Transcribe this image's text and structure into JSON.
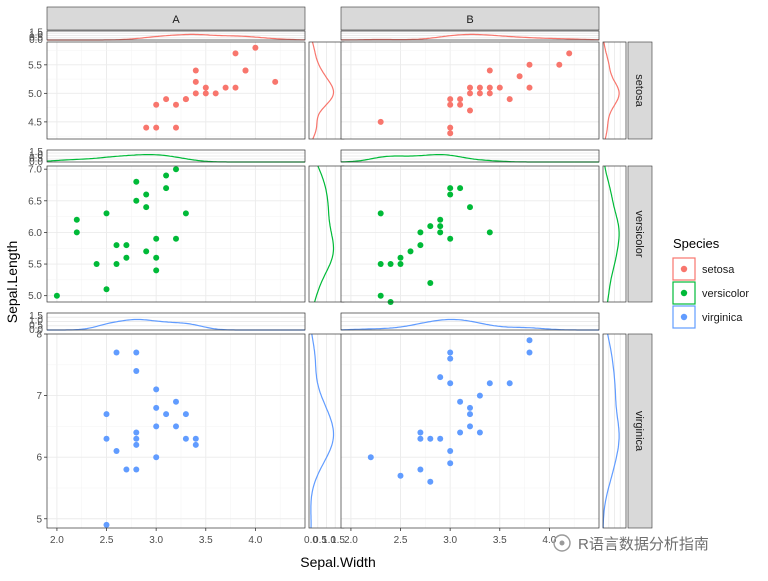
{
  "chart_data": {
    "type": "scatter",
    "title": "",
    "xlabel": "Sepal.Width",
    "ylabel": "Sepal.Length",
    "facet_columns": [
      "A",
      "B"
    ],
    "facet_rows": [
      "setosa",
      "versicolor",
      "virginica"
    ],
    "xlim": [
      1.9,
      4.5
    ],
    "x_ticks": [
      "2.0",
      "2.5",
      "3.0",
      "3.5",
      "4.0"
    ],
    "marginal_ticks": [
      "0.0",
      "0.5",
      "1.0",
      "1.5"
    ],
    "legend": {
      "title": "Species",
      "position": "right",
      "entries": [
        {
          "label": "setosa",
          "color": "#F8766D"
        },
        {
          "label": "versicolor",
          "color": "#00BA38"
        },
        {
          "label": "virginica",
          "color": "#619CFF"
        }
      ]
    },
    "rows": [
      {
        "species": "setosa",
        "color": "#F8766D",
        "ylim": [
          4.2,
          5.9
        ],
        "y_ticks": [
          "4.5",
          "5.0",
          "5.5"
        ],
        "panels": {
          "A": {
            "x": [
              2.9,
              3.0,
              3.0,
              3.2,
              3.3,
              3.3,
              3.2,
              3.1,
              3.4,
              3.4,
              3.4,
              3.5,
              3.5,
              3.6,
              3.7,
              3.8,
              3.8,
              3.9,
              3.9,
              4.0,
              4.2
            ],
            "y": [
              4.4,
              4.4,
              4.8,
              4.4,
              4.9,
              4.9,
              4.8,
              4.9,
              5.0,
              5.2,
              5.4,
              5.1,
              5.0,
              5.0,
              5.1,
              5.1,
              5.7,
              5.4,
              5.4,
              5.8,
              5.2
            ]
          },
          "B": {
            "x": [
              2.3,
              3.0,
              3.0,
              3.0,
              3.0,
              3.1,
              3.1,
              3.2,
              3.2,
              3.2,
              3.3,
              3.3,
              3.4,
              3.4,
              3.4,
              3.5,
              3.6,
              3.7,
              3.8,
              3.8,
              4.1,
              4.2
            ],
            "y": [
              4.5,
              4.3,
              4.8,
              4.4,
              4.9,
              4.8,
              4.9,
              5.0,
              5.1,
              4.7,
              5.1,
              5.0,
              5.0,
              5.1,
              5.4,
              5.1,
              4.9,
              5.3,
              5.1,
              5.5,
              5.5,
              5.7
            ]
          }
        }
      },
      {
        "species": "versicolor",
        "color": "#00BA38",
        "ylim": [
          4.9,
          7.05
        ],
        "y_ticks": [
          "5.0",
          "5.5",
          "6.0",
          "6.5",
          "7.0"
        ],
        "panels": {
          "A": {
            "x": [
              2.0,
              2.2,
              2.2,
              2.4,
              2.5,
              2.5,
              2.6,
              2.6,
              2.7,
              2.7,
              2.8,
              2.8,
              2.9,
              2.9,
              2.9,
              3.0,
              3.0,
              3.0,
              3.1,
              3.1,
              3.2,
              3.2,
              3.3
            ],
            "y": [
              5.0,
              6.2,
              6.0,
              5.5,
              6.3,
              5.1,
              5.5,
              5.8,
              5.8,
              5.6,
              6.8,
              6.5,
              6.6,
              5.7,
              6.4,
              5.6,
              5.9,
              5.4,
              6.7,
              6.9,
              7.0,
              5.9,
              6.3
            ]
          },
          "B": {
            "x": [
              2.3,
              2.3,
              2.3,
              2.4,
              2.4,
              2.5,
              2.5,
              2.6,
              2.7,
              2.7,
              2.8,
              2.8,
              2.9,
              2.9,
              2.9,
              3.0,
              3.0,
              3.0,
              3.1,
              3.2,
              3.4
            ],
            "y": [
              6.3,
              5.5,
              5.0,
              4.9,
              5.5,
              5.6,
              5.5,
              5.7,
              5.8,
              6.0,
              6.1,
              5.2,
              6.2,
              6.1,
              6.0,
              6.7,
              6.6,
              5.9,
              6.7,
              6.4,
              6.0
            ]
          }
        }
      },
      {
        "species": "virginica",
        "color": "#619CFF",
        "ylim": [
          4.85,
          8.0
        ],
        "y_ticks": [
          "5",
          "6",
          "7",
          "8"
        ],
        "panels": {
          "A": {
            "x": [
              2.5,
              2.5,
              2.5,
              2.6,
              2.6,
              2.7,
              2.8,
              2.8,
              2.8,
              2.8,
              2.8,
              2.8,
              3.0,
              3.0,
              3.0,
              3.0,
              3.1,
              3.2,
              3.2,
              3.3,
              3.3,
              3.4,
              3.4
            ],
            "y": [
              4.9,
              6.3,
              6.7,
              7.7,
              6.1,
              5.8,
              7.7,
              7.4,
              6.4,
              6.3,
              6.2,
              5.8,
              7.1,
              6.8,
              6.5,
              6.0,
              6.7,
              6.9,
              6.5,
              6.7,
              6.3,
              6.3,
              6.2
            ]
          },
          "B": {
            "x": [
              2.2,
              2.5,
              2.7,
              2.7,
              2.7,
              2.8,
              2.8,
              2.9,
              2.9,
              3.0,
              3.0,
              3.0,
              3.0,
              3.0,
              3.1,
              3.1,
              3.2,
              3.2,
              3.2,
              3.3,
              3.3,
              3.4,
              3.6,
              3.8,
              3.8
            ],
            "y": [
              6.0,
              5.7,
              5.8,
              6.3,
              6.4,
              5.6,
              6.3,
              7.3,
              6.3,
              7.7,
              7.6,
              7.2,
              6.1,
              5.9,
              6.9,
              6.4,
              6.8,
              6.5,
              6.7,
              7.0,
              6.4,
              7.2,
              7.2,
              7.9,
              7.7
            ]
          }
        }
      }
    ]
  },
  "watermark": "R语言数据分析指南"
}
